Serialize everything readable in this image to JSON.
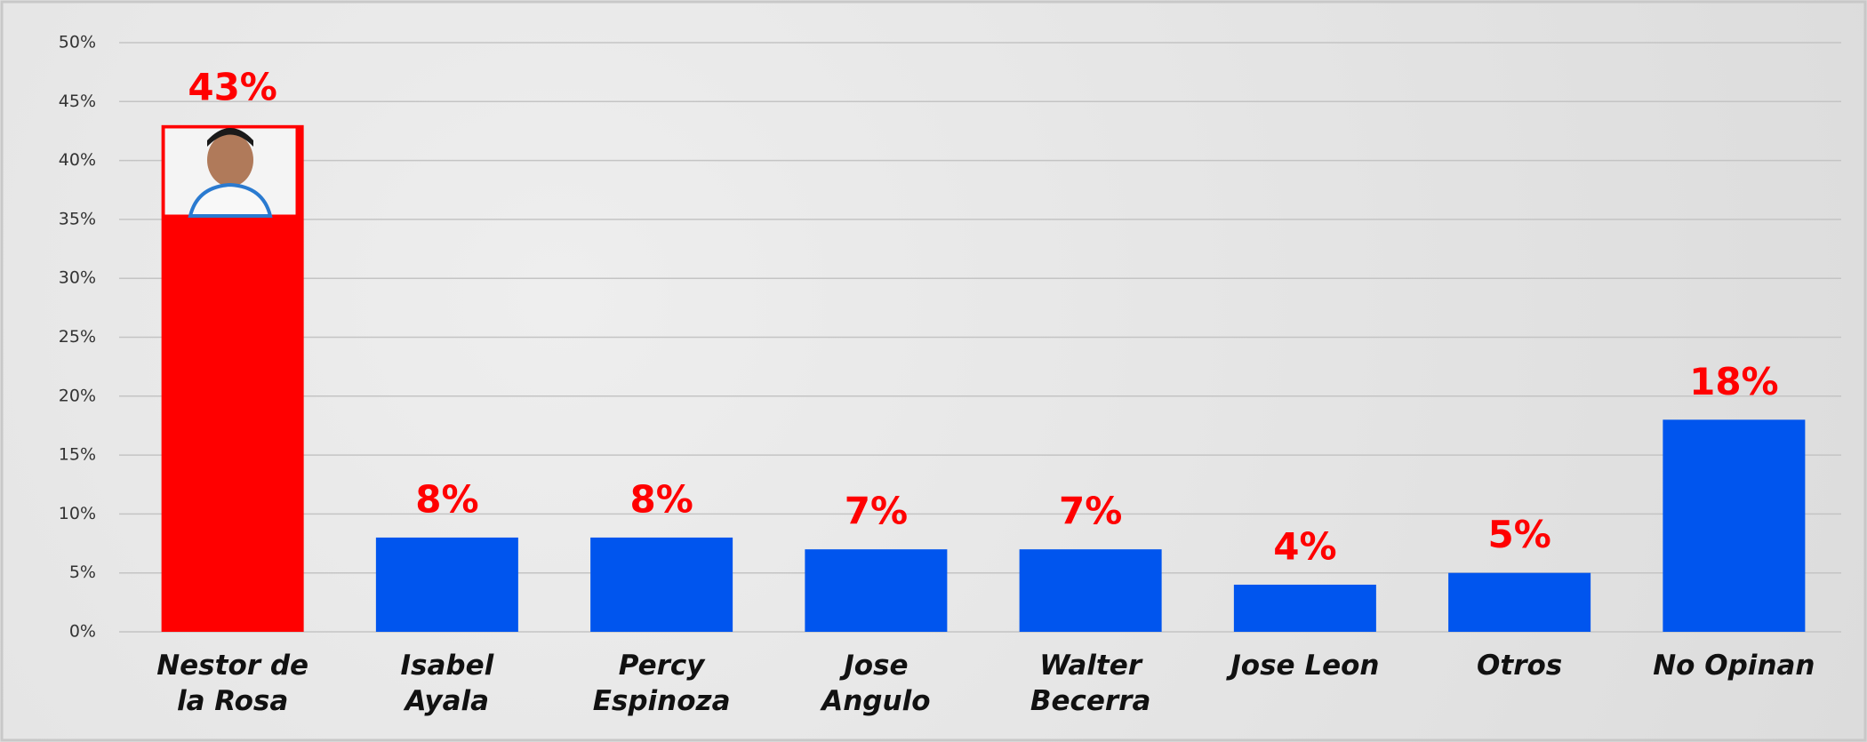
{
  "chart_data": {
    "type": "bar",
    "categories": [
      "Nestor de\nla Rosa",
      "Isabel\nAyala",
      "Percy\nEspinoza",
      "Jose\nAngulo",
      "Walter\nBecerra",
      "Jose Leon",
      "Otros",
      "No Opinan"
    ],
    "values": [
      43,
      8,
      8,
      7,
      7,
      4,
      5,
      18
    ],
    "value_labels": [
      "43%",
      "8%",
      "8%",
      "7%",
      "7%",
      "4%",
      "5%",
      "18%"
    ],
    "colors": [
      "#ff0000",
      "#0055ee",
      "#0055ee",
      "#0055ee",
      "#0055ee",
      "#0055ee",
      "#0055ee",
      "#0055ee"
    ],
    "ylim": [
      0,
      50
    ],
    "yticks": [
      {
        "value": 0,
        "label": "0%"
      },
      {
        "value": 5,
        "label": "5%"
      },
      {
        "value": 10,
        "label": "10%"
      },
      {
        "value": 15,
        "label": "15%"
      },
      {
        "value": 20,
        "label": "20%"
      },
      {
        "value": 25,
        "label": "25%"
      },
      {
        "value": 30,
        "label": "30%"
      },
      {
        "value": 35,
        "label": "35%"
      },
      {
        "value": 40,
        "label": "40%"
      },
      {
        "value": 45,
        "label": "45%"
      },
      {
        "value": 50,
        "label": "50%"
      }
    ],
    "grid": true
  }
}
